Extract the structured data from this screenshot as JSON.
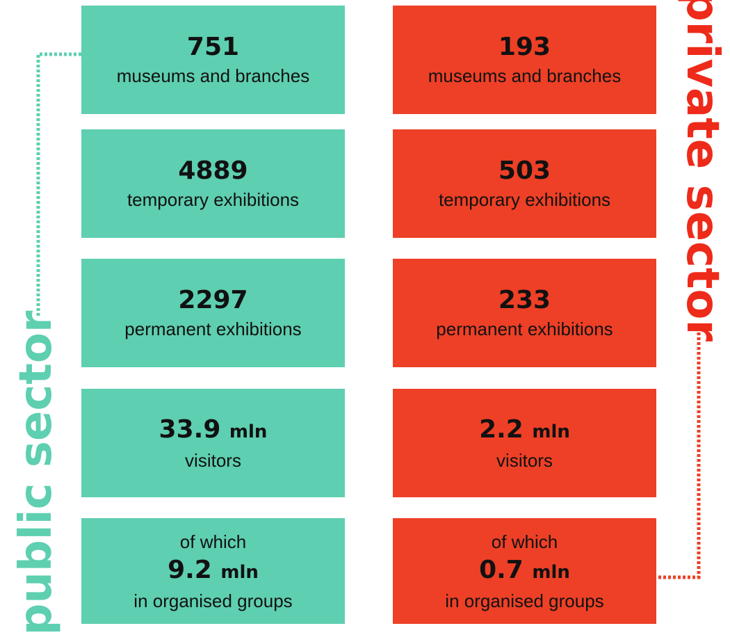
{
  "public_sector": {
    "label": "public sector",
    "cards": [
      {
        "value": "751",
        "text": "museums and branches"
      },
      {
        "value": "4889",
        "text": "temporary exhibitions"
      },
      {
        "value": "2297",
        "text": "permanent exhibitions"
      },
      {
        "value": "33.9",
        "unit": "mln",
        "text": "visitors"
      },
      {
        "prefix": "of which",
        "value": "9.2",
        "unit": "mln",
        "text": "in organised groups"
      }
    ]
  },
  "private_sector": {
    "label": "private sector",
    "cards": [
      {
        "value": "193",
        "text": "museums and branches"
      },
      {
        "value": "503",
        "text": "temporary exhibitions"
      },
      {
        "value": "233",
        "text": "permanent exhibitions"
      },
      {
        "value": "2.2",
        "unit": "mln",
        "text": "visitors"
      },
      {
        "prefix": "of which",
        "value": "0.7",
        "unit": "mln",
        "text": "in organised groups"
      }
    ]
  }
}
